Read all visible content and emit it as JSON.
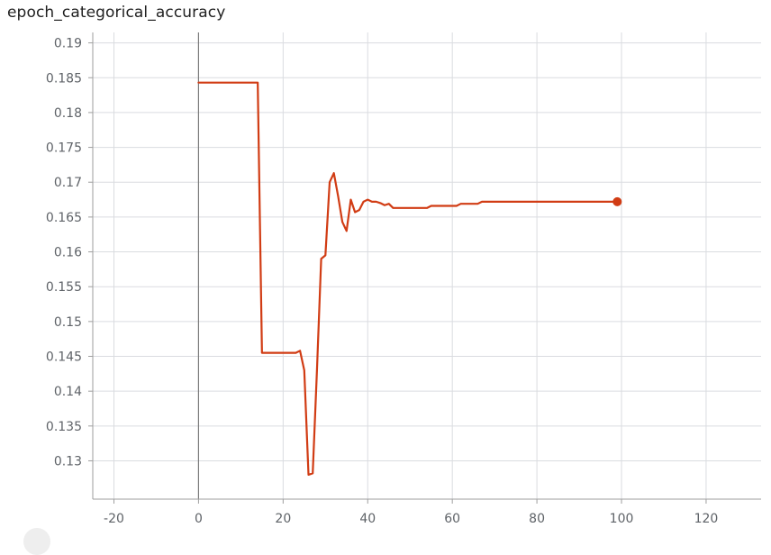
{
  "chart_data": {
    "type": "line",
    "title": "epoch_categorical_accuracy",
    "xlabel": "",
    "ylabel": "",
    "xlim": [
      -25,
      133
    ],
    "ylim": [
      0.1245,
      0.1915
    ],
    "x_ticks": [
      -20,
      0,
      20,
      40,
      60,
      80,
      100,
      120
    ],
    "y_ticks": [
      0.13,
      0.135,
      0.14,
      0.145,
      0.15,
      0.155,
      0.16,
      0.165,
      0.17,
      0.175,
      0.18,
      0.185,
      0.19
    ],
    "grid": true,
    "legend": "none",
    "series": [
      {
        "color": "#d13c14",
        "x": [
          0,
          14,
          15,
          16,
          20,
          23,
          24,
          25,
          26,
          27,
          28,
          29,
          30,
          31,
          32,
          33,
          34,
          35,
          36,
          37,
          38,
          39,
          40,
          41,
          42,
          43,
          44,
          45,
          46,
          50,
          54,
          55,
          60,
          61,
          62,
          65,
          66,
          67,
          70,
          80,
          90,
          99
        ],
        "y": [
          0.1843,
          0.1843,
          0.1455,
          0.1455,
          0.1455,
          0.1455,
          0.1458,
          0.143,
          0.128,
          0.1282,
          0.143,
          0.159,
          0.1595,
          0.17,
          0.1713,
          0.168,
          0.1643,
          0.163,
          0.1675,
          0.1657,
          0.166,
          0.1672,
          0.1675,
          0.1672,
          0.1672,
          0.167,
          0.1667,
          0.1669,
          0.1663,
          0.1663,
          0.1663,
          0.1666,
          0.1666,
          0.1666,
          0.1669,
          0.1669,
          0.1669,
          0.1672,
          0.1672,
          0.1672,
          0.1672,
          0.1672
        ]
      }
    ]
  }
}
